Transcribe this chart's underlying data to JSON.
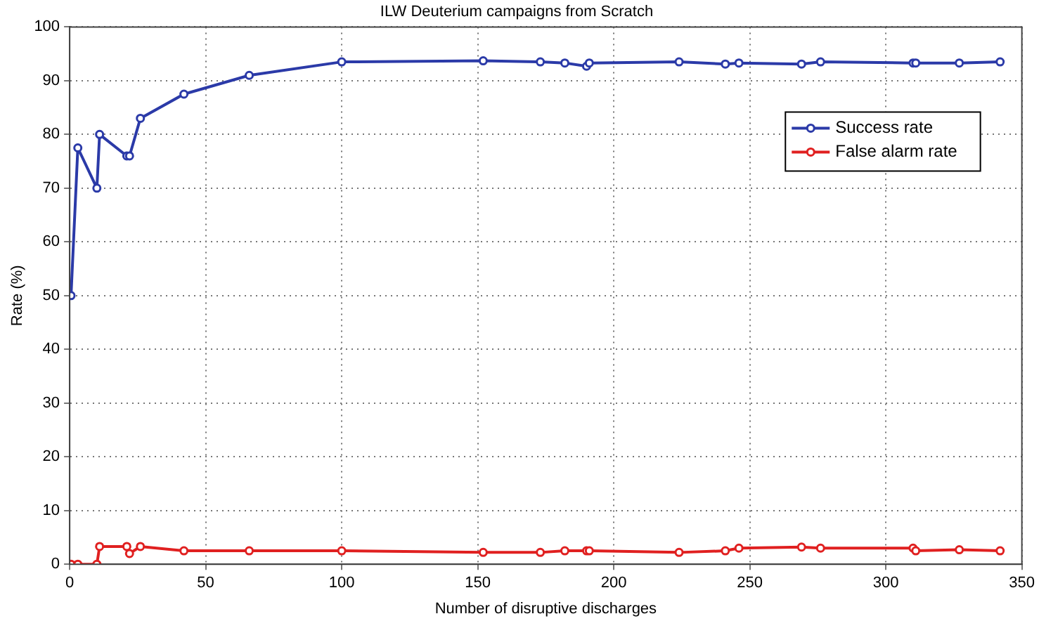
{
  "chart_data": {
    "type": "line",
    "title": "ILW Deuterium campaigns from Scratch",
    "xlabel": "Number of disruptive discharges",
    "ylabel": "Rate (%)",
    "x": [
      0.5,
      3,
      10,
      11,
      21,
      22,
      26,
      42,
      66,
      100,
      152,
      173,
      182,
      190,
      191,
      224,
      241,
      246,
      269,
      276,
      310,
      311,
      327,
      342
    ],
    "series": [
      {
        "name": "Success rate",
        "color": "#2b3aa8",
        "values": [
          50,
          77.5,
          70,
          80,
          76,
          76,
          83,
          87.5,
          91,
          93.5,
          93.7,
          93.5,
          93.3,
          92.7,
          93.3,
          93.5,
          93.1,
          93.3,
          93.1,
          93.5,
          93.3,
          93.3,
          93.3,
          93.5
        ]
      },
      {
        "name": "False alarm rate",
        "color": "#e02020",
        "values": [
          0,
          0,
          0,
          3.3,
          3.3,
          2,
          3.3,
          2.5,
          2.5,
          2.5,
          2.2,
          2.2,
          2.5,
          2.5,
          2.5,
          2.2,
          2.5,
          3,
          3.2,
          3,
          3,
          2.5,
          2.7,
          2.5
        ]
      }
    ],
    "xlim": [
      0,
      350
    ],
    "xticks": [
      0,
      50,
      100,
      150,
      200,
      250,
      300,
      350
    ],
    "ylim": [
      0,
      100
    ],
    "yticks": [
      0,
      10,
      20,
      30,
      40,
      50,
      60,
      70,
      80,
      90,
      100
    ],
    "grid": true,
    "legend": "top right",
    "marker": "circle",
    "line_style": "solid"
  }
}
